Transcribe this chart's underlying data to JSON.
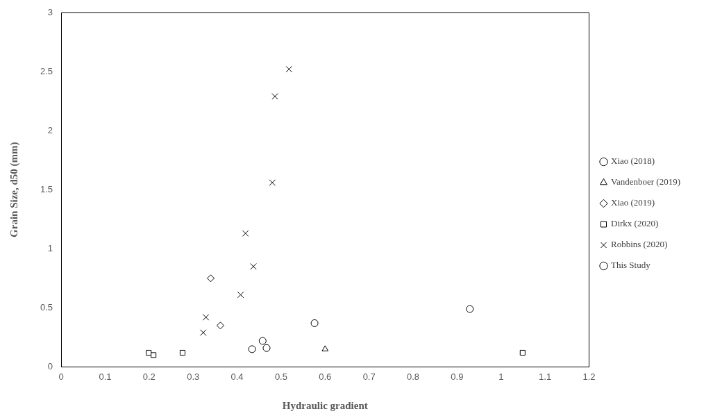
{
  "chart_data": {
    "type": "scatter",
    "xlabel": "Hydraulic gradient",
    "ylabel": "Grain Size, d50 (mm)",
    "xlim": [
      0,
      1.2
    ],
    "xticks": [
      0,
      0.1,
      0.2,
      0.3,
      0.4,
      0.5,
      0.6,
      0.7,
      0.8,
      0.9,
      1,
      1.1,
      1.2
    ],
    "ylim": [
      0,
      3
    ],
    "yticks": [
      0,
      0.5,
      1,
      1.5,
      2,
      2.5,
      3
    ],
    "grid": false,
    "legend": "right",
    "series": [
      {
        "name": "Xiao (2018)",
        "color": "#000000",
        "marker": "circle",
        "x": [
          0.434,
          0.458,
          0.576
        ],
        "values": [
          0.15,
          0.22,
          0.37
        ]
      },
      {
        "name": "Vandenboer (2019)",
        "color": "#000000",
        "marker": "triangle",
        "x": [
          0.6
        ],
        "values": [
          0.15
        ]
      },
      {
        "name": "Xiao (2019)",
        "color": "#000000",
        "marker": "diamond",
        "x": [
          0.34,
          0.362
        ],
        "values": [
          0.75,
          0.35
        ]
      },
      {
        "name": "Dirkx (2020)",
        "color": "#000000",
        "marker": "square",
        "x": [
          0.199,
          0.21,
          0.276,
          1.049
        ],
        "values": [
          0.12,
          0.1,
          0.12,
          0.12
        ]
      },
      {
        "name": "Robbins (2020)",
        "color": "#000000",
        "marker": "cross",
        "x": [
          0.518,
          0.486,
          0.48,
          0.419,
          0.437,
          0.408,
          0.329,
          0.323
        ],
        "values": [
          2.52,
          2.29,
          1.56,
          1.13,
          0.85,
          0.61,
          0.42,
          0.29
        ]
      },
      {
        "name": "This Study",
        "color": "#000000",
        "marker": "circle",
        "x": [
          0.467,
          0.929
        ],
        "values": [
          0.16,
          0.49
        ]
      }
    ]
  }
}
